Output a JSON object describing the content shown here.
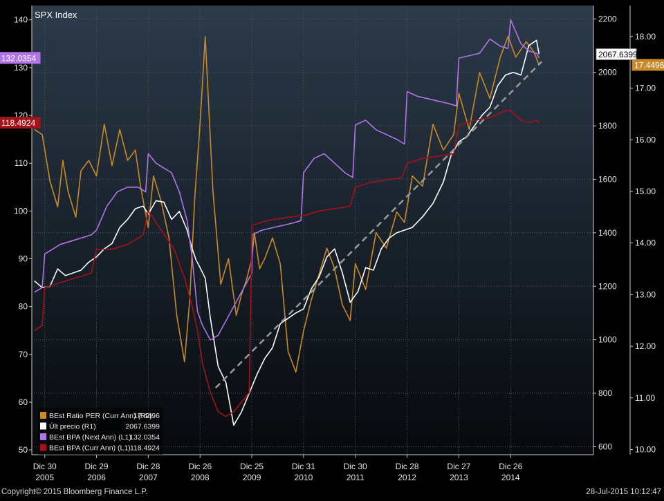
{
  "chart_data": {
    "type": "line",
    "title": "SPX Index",
    "copyright": "Copyright© 2015 Bloomberg Finance L.P.",
    "timestamp": "28-Jul-2015 10:12:47",
    "x_ticks": [
      {
        "day": "Dic 30",
        "year": "2005",
        "t": 2005.0
      },
      {
        "day": "Dic 29",
        "year": "2006",
        "t": 2006.0
      },
      {
        "day": "Dic 28",
        "year": "2007",
        "t": 2007.0
      },
      {
        "day": "Dic 26",
        "year": "2008",
        "t": 2008.0
      },
      {
        "day": "Dic 25",
        "year": "2009",
        "t": 2009.0
      },
      {
        "day": "Dic 31",
        "year": "2010",
        "t": 2010.0
      },
      {
        "day": "Dic 30",
        "year": "2011",
        "t": 2011.0
      },
      {
        "day": "Dic 28",
        "year": "2012",
        "t": 2012.0
      },
      {
        "day": "Dic 27",
        "year": "2013",
        "t": 2013.0
      },
      {
        "day": "Dic 26",
        "year": "2014",
        "t": 2014.0
      }
    ],
    "xlim": [
      2004.75,
      2015.6
    ],
    "axes": {
      "L1": {
        "range": [
          49,
          143
        ],
        "ticks": [
          50,
          60,
          70,
          80,
          90,
          100,
          110,
          120,
          130,
          140
        ]
      },
      "R1": {
        "range": [
          570,
          2250
        ],
        "ticks": [
          600,
          800,
          1000,
          1200,
          1400,
          1600,
          1800,
          2000,
          2200
        ]
      },
      "R2": {
        "range": [
          9.9,
          18.6
        ],
        "ticks": [
          "10.00",
          "11.00",
          "12.00",
          "13.00",
          "14.00",
          "15.00",
          "16.00",
          "17.00",
          "18.00"
        ]
      }
    },
    "series": [
      {
        "name": "BEst Ratio PER (Curr Ann) (R2)",
        "legend_value": "17.4496",
        "last_label": "17.4496",
        "axis": "R2",
        "color": "#c98a25",
        "x": [
          2004.8,
          2004.95,
          2005.1,
          2005.25,
          2005.35,
          2005.45,
          2005.6,
          2005.7,
          2005.85,
          2006.0,
          2006.15,
          2006.3,
          2006.45,
          2006.6,
          2006.75,
          2006.85,
          2007.0,
          2007.1,
          2007.25,
          2007.4,
          2007.55,
          2007.7,
          2007.8,
          2007.9,
          2008.0,
          2008.1,
          2008.25,
          2008.4,
          2008.55,
          2008.7,
          2008.8,
          2008.9,
          2009.0,
          2009.05,
          2009.15,
          2009.25,
          2009.4,
          2009.55,
          2009.7,
          2009.85,
          2010.0,
          2010.15,
          2010.3,
          2010.45,
          2010.6,
          2010.75,
          2010.9,
          2011.0,
          2011.2,
          2011.4,
          2011.6,
          2011.8,
          2011.95,
          2012.1,
          2012.3,
          2012.5,
          2012.7,
          2012.9,
          2013.0,
          2013.2,
          2013.4,
          2013.6,
          2013.8,
          2013.95,
          2014.1,
          2014.3,
          2014.45,
          2014.55
        ],
        "y": [
          16.2,
          16.1,
          15.2,
          14.7,
          15.6,
          15.0,
          14.5,
          15.4,
          15.6,
          15.3,
          16.3,
          15.5,
          16.2,
          15.6,
          15.8,
          15.1,
          14.3,
          15.3,
          14.8,
          14.1,
          12.6,
          11.7,
          12.9,
          14.9,
          16.3,
          18.0,
          15.0,
          13.2,
          13.7,
          12.6,
          13.0,
          13.3,
          13.7,
          14.2,
          13.5,
          13.7,
          14.1,
          13.6,
          11.9,
          11.5,
          12.3,
          12.9,
          13.4,
          13.9,
          13.5,
          12.8,
          12.5,
          13.6,
          13.1,
          14.2,
          13.9,
          14.6,
          14.4,
          15.3,
          15.1,
          16.3,
          15.8,
          16.1,
          16.9,
          16.2,
          17.3,
          16.8,
          17.6,
          18.0,
          17.6,
          17.9,
          17.7,
          17.45
        ]
      },
      {
        "name": "Últ precio  (R1)",
        "legend_value": "2067.6399",
        "last_label": "2067.6399",
        "axis": "R1",
        "color": "#ffffff",
        "x": [
          2004.8,
          2004.95,
          2005.1,
          2005.25,
          2005.4,
          2005.55,
          2005.7,
          2005.85,
          2006.0,
          2006.15,
          2006.3,
          2006.45,
          2006.6,
          2006.75,
          2006.9,
          2007.0,
          2007.15,
          2007.3,
          2007.45,
          2007.6,
          2007.75,
          2007.85,
          2007.92,
          2008.0,
          2008.1,
          2008.2,
          2008.35,
          2008.5,
          2008.65,
          2008.8,
          2008.95,
          2009.1,
          2009.25,
          2009.4,
          2009.55,
          2009.7,
          2009.85,
          2010.0,
          2010.15,
          2010.3,
          2010.45,
          2010.6,
          2010.75,
          2010.9,
          2011.05,
          2011.2,
          2011.35,
          2011.5,
          2011.65,
          2011.8,
          2011.95,
          2012.1,
          2012.3,
          2012.5,
          2012.7,
          2012.85,
          2013.0,
          2013.15,
          2013.3,
          2013.45,
          2013.6,
          2013.75,
          2013.9,
          2014.05,
          2014.2,
          2014.35,
          2014.5,
          2014.55
        ],
        "y": [
          1220,
          1195,
          1200,
          1265,
          1240,
          1250,
          1260,
          1290,
          1310,
          1340,
          1360,
          1420,
          1450,
          1490,
          1500,
          1470,
          1520,
          1515,
          1450,
          1480,
          1410,
          1340,
          1300,
          1270,
          1230,
          1080,
          900,
          840,
          680,
          730,
          800,
          870,
          930,
          970,
          1060,
          1080,
          1100,
          1115,
          1190,
          1235,
          1310,
          1340,
          1250,
          1140,
          1180,
          1270,
          1260,
          1340,
          1380,
          1400,
          1410,
          1420,
          1460,
          1510,
          1590,
          1690,
          1740,
          1760,
          1800,
          1840,
          1870,
          1950,
          1990,
          2000,
          1990,
          2100,
          2120,
          2068
        ]
      },
      {
        "name": "BEst BPA (Next Ann) (L1)",
        "legend_value": "132.0354",
        "last_label": "132.0354",
        "axis": "L1",
        "color": "#b075e8",
        "x": [
          2004.8,
          2004.95,
          2005.0,
          2005.3,
          2005.6,
          2005.9,
          2006.0,
          2006.2,
          2006.4,
          2006.6,
          2006.8,
          2006.95,
          2007.0,
          2007.15,
          2007.3,
          2007.45,
          2007.6,
          2007.75,
          2007.85,
          2007.95,
          2008.05,
          2008.2,
          2008.35,
          2008.5,
          2008.6,
          2008.7,
          2008.8,
          2008.9,
          2009.0,
          2009.01,
          2009.2,
          2009.4,
          2009.6,
          2009.8,
          2009.95,
          2010.0,
          2010.2,
          2010.4,
          2010.6,
          2010.8,
          2010.95,
          2011.0,
          2011.2,
          2011.4,
          2011.6,
          2011.8,
          2011.95,
          2012.0,
          2012.2,
          2012.4,
          2012.6,
          2012.8,
          2012.95,
          2013.0,
          2013.2,
          2013.4,
          2013.6,
          2013.8,
          2013.95,
          2014.0,
          2014.2,
          2014.35,
          2014.5,
          2014.55
        ],
        "y": [
          83,
          84,
          91,
          93,
          94,
          95,
          96,
          101,
          104,
          105,
          105,
          104,
          112,
          110,
          109,
          108,
          104,
          98,
          90,
          79,
          76,
          73,
          74,
          77,
          79,
          81,
          83,
          85,
          87,
          95,
          96,
          96.5,
          97,
          97.5,
          98,
          108,
          111,
          112,
          110,
          108,
          107,
          118,
          119,
          117,
          116,
          115,
          114,
          125,
          124,
          123.5,
          123,
          122.5,
          122,
          132,
          132.5,
          133,
          136,
          134.5,
          134,
          140,
          135,
          133.5,
          133,
          132.04
        ]
      },
      {
        "name": "BEst BPA (Curr Ann) (L1)",
        "legend_value": "118.4924",
        "last_label": "118.4924",
        "axis": "L1",
        "color": "#a3121a",
        "x": [
          2004.8,
          2004.95,
          2005.0,
          2005.3,
          2005.6,
          2005.9,
          2006.0,
          2006.3,
          2006.6,
          2006.9,
          2007.0,
          2007.25,
          2007.5,
          2007.7,
          2007.85,
          2007.95,
          2008.05,
          2008.2,
          2008.35,
          2008.5,
          2008.65,
          2008.8,
          2008.95,
          2009.0,
          2009.3,
          2009.6,
          2009.9,
          2010.0,
          2010.3,
          2010.6,
          2010.9,
          2011.0,
          2011.3,
          2011.6,
          2011.9,
          2012.0,
          2012.3,
          2012.6,
          2012.9,
          2013.0,
          2013.3,
          2013.6,
          2013.9,
          2014.0,
          2014.2,
          2014.35,
          2014.5,
          2014.55
        ],
        "y": [
          75,
          76,
          84,
          85,
          86,
          87,
          92,
          92,
          93,
          95,
          100,
          96,
          92,
          86,
          80,
          75,
          68,
          62,
          58,
          57,
          58,
          60,
          62,
          97,
          98,
          98.5,
          99,
          99,
          100,
          100.5,
          101,
          105,
          106,
          106.5,
          107,
          110,
          111,
          111.5,
          112,
          118,
          119,
          119.5,
          121,
          121,
          119,
          118.5,
          119,
          118.49
        ]
      }
    ],
    "trend_line": {
      "axis": "R1",
      "x": [
        2008.3,
        2014.6
      ],
      "y": [
        820,
        2040
      ],
      "color": "#9a9a9a",
      "dash": true
    }
  }
}
